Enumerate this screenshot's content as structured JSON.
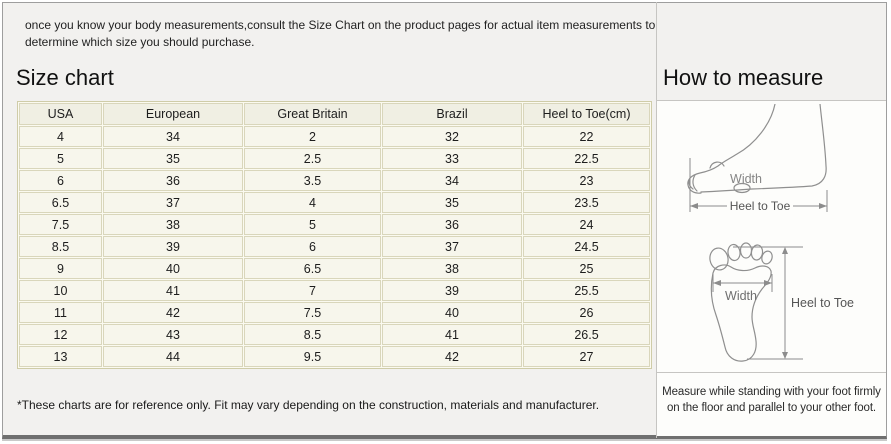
{
  "page": {
    "intro_lines": [
      "once you know your body measurements,consult the Size Chart on the product pages for actual item measurements to",
      "determine which size you should purchase."
    ]
  },
  "size_chart": {
    "title": "Size chart",
    "table": {
      "headers": [
        "USA",
        "European",
        "Great Britain",
        "Brazil",
        "Heel to Toe(cm)"
      ],
      "rows": [
        [
          "4",
          "34",
          "2",
          "32",
          "22"
        ],
        [
          "5",
          "35",
          "2.5",
          "33",
          "22.5"
        ],
        [
          "6",
          "36",
          "3.5",
          "34",
          "23"
        ],
        [
          "6.5",
          "37",
          "4",
          "35",
          "23.5"
        ],
        [
          "7.5",
          "38",
          "5",
          "36",
          "24"
        ],
        [
          "8.5",
          "39",
          "6",
          "37",
          "24.5"
        ],
        [
          "9",
          "40",
          "6.5",
          "38",
          "25"
        ],
        [
          "10",
          "41",
          "7",
          "39",
          "25.5"
        ],
        [
          "11",
          "42",
          "7.5",
          "40",
          "26"
        ],
        [
          "12",
          "43",
          "8.5",
          "41",
          "26.5"
        ],
        [
          "13",
          "44",
          "9.5",
          "42",
          "27"
        ]
      ]
    },
    "footnote": "*These charts are for reference only. Fit may vary depending on the construction, materials and manufacturer."
  },
  "how_to_measure": {
    "title": "How to measure",
    "side_view": {
      "width_label": "Width",
      "heel_to_toe_label": "Heel to Toe"
    },
    "sole_view": {
      "width_label": "Width",
      "heel_to_toe_label": "Heel to Toe"
    },
    "note_lines": [
      "Measure while standing with your foot firmly",
      "on the floor and parallel to your other foot."
    ]
  },
  "colors": {
    "page_bg": "#f2f1ef",
    "diagram_bg": "#fdfdfb",
    "table_border": "#d9d6bb",
    "table_cell_bg": "#f7f6ec",
    "table_header_bg": "#f0efe3",
    "divider_line": "#c6c5c2",
    "frame_border": "#9e9e9e",
    "frame_bottom": "#6f6f6f",
    "text": "#1c1c1c",
    "diagram_stroke": "#8f8f8f"
  }
}
